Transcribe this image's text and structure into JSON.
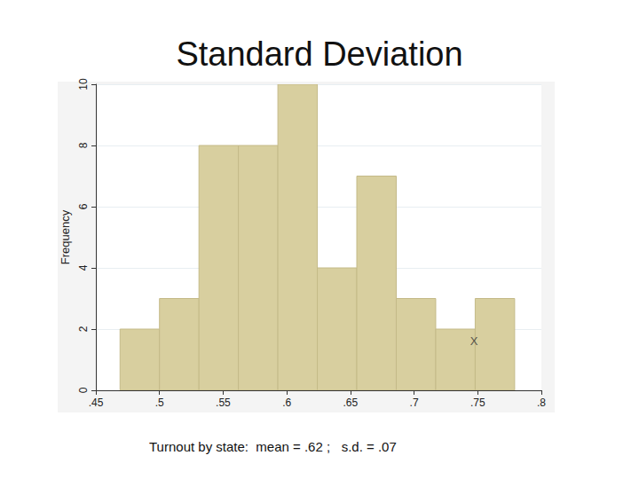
{
  "chart_data": {
    "type": "histogram",
    "title": "Standard Deviation",
    "caption": "Turnout by state:  mean = .62 ;   s.d. = .07",
    "y_label": "Frequency",
    "bins": [
      0.469,
      0.5,
      0.531,
      0.562,
      0.593,
      0.624,
      0.655,
      0.686,
      0.717,
      0.748,
      0.779
    ],
    "values": [
      2,
      3,
      8,
      8,
      10,
      4,
      7,
      3,
      2,
      3
    ],
    "color": "#d8cf9f",
    "xlim": [
      0.45,
      0.8
    ],
    "xticks": [
      {
        "value": 0.45,
        "label": ".45"
      },
      {
        "value": 0.5,
        "label": ".5"
      },
      {
        "value": 0.55,
        "label": ".55"
      },
      {
        "value": 0.6,
        "label": ".6"
      },
      {
        "value": 0.65,
        "label": ".65"
      },
      {
        "value": 0.7,
        "label": ".7"
      },
      {
        "value": 0.75,
        "label": ".75"
      },
      {
        "value": 0.8,
        "label": ".8"
      }
    ],
    "ylim": [
      0,
      10
    ],
    "yticks": [
      0,
      2,
      4,
      6,
      8,
      10
    ],
    "grid": true,
    "annotations": [
      {
        "text": "X",
        "x": 0.747,
        "y": 1.6
      }
    ]
  }
}
